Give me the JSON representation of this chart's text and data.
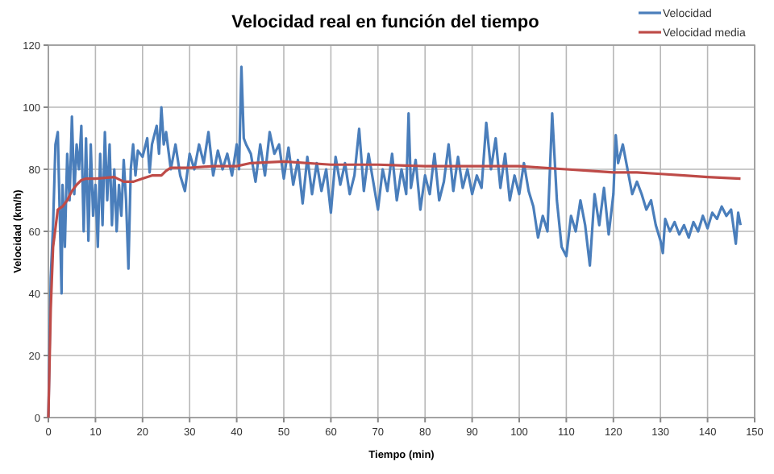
{
  "chart_data": {
    "type": "line",
    "title": "Velocidad real en función del tiempo",
    "xlabel": "Tiempo (min)",
    "ylabel": "Velocidad (km/h)",
    "xlim": [
      0,
      150
    ],
    "xticks": [
      0,
      10,
      20,
      30,
      40,
      50,
      60,
      70,
      80,
      90,
      100,
      110,
      120,
      130,
      140,
      150
    ],
    "ylim": [
      0,
      120
    ],
    "yticks": [
      0,
      20,
      40,
      60,
      80,
      100,
      120
    ],
    "grid": true,
    "legend": "top right",
    "series": [
      {
        "name": "Velocidad",
        "color": "#4a7ebb",
        "x": [
          0,
          0.5,
          1,
          1.5,
          2,
          2.5,
          2.8,
          3,
          3.5,
          4,
          4.5,
          5,
          5.5,
          6,
          6.5,
          7,
          7.5,
          8,
          8.5,
          9,
          9.5,
          10,
          10.5,
          11,
          11.5,
          12,
          12.5,
          13,
          13.5,
          14,
          14.5,
          15,
          15.5,
          16,
          16.5,
          17,
          17.5,
          18,
          18.5,
          19,
          20,
          21,
          21.5,
          22,
          23,
          23.5,
          24,
          24.5,
          25,
          26,
          27,
          28,
          29,
          30,
          31,
          32,
          33,
          34,
          35,
          36,
          37,
          38,
          39,
          40,
          40.5,
          41,
          41.5,
          42,
          43,
          44,
          45,
          46,
          47,
          48,
          49,
          50,
          51,
          52,
          53,
          54,
          55,
          56,
          57,
          58,
          59,
          60,
          61,
          62,
          63,
          64,
          65,
          66,
          67,
          68,
          69,
          70,
          71,
          72,
          73,
          74,
          75,
          76,
          76.5,
          77,
          78,
          79,
          80,
          81,
          82,
          83,
          84,
          85,
          86,
          87,
          88,
          89,
          90,
          91,
          92,
          93,
          94,
          95,
          96,
          97,
          98,
          99,
          100,
          101,
          102,
          103,
          104,
          105,
          106,
          107,
          108,
          109,
          110,
          111,
          112,
          113,
          114,
          115,
          116,
          117,
          118,
          119,
          120,
          120.5,
          121,
          122,
          123,
          124,
          125,
          126,
          127,
          128,
          129,
          130,
          130.5,
          131,
          132,
          133,
          134,
          135,
          136,
          137,
          138,
          139,
          140,
          141,
          142,
          143,
          144,
          145,
          146,
          146.5,
          147
        ],
        "values": [
          0,
          45,
          62,
          88,
          92,
          60,
          40,
          75,
          55,
          85,
          70,
          97,
          72,
          88,
          80,
          94,
          60,
          90,
          57,
          88,
          65,
          75,
          55,
          85,
          62,
          92,
          70,
          88,
          62,
          80,
          60,
          75,
          65,
          83,
          70,
          48,
          80,
          88,
          78,
          86,
          84,
          90,
          79,
          88,
          94,
          85,
          100,
          88,
          92,
          80,
          88,
          78,
          73,
          85,
          80,
          88,
          82,
          92,
          78,
          86,
          80,
          85,
          78,
          88,
          80,
          113,
          90,
          88,
          85,
          76,
          88,
          78,
          92,
          85,
          88,
          77,
          87,
          75,
          83,
          69,
          84,
          72,
          82,
          73,
          80,
          66,
          84,
          75,
          82,
          72,
          78,
          93,
          73,
          85,
          76,
          67,
          80,
          73,
          85,
          70,
          80,
          72,
          98,
          74,
          83,
          67,
          78,
          72,
          85,
          70,
          76,
          88,
          73,
          84,
          74,
          80,
          72,
          78,
          74,
          95,
          80,
          90,
          74,
          85,
          70,
          78,
          72,
          82,
          73,
          68,
          58,
          65,
          60,
          98,
          70,
          55,
          52,
          65,
          60,
          70,
          62,
          49,
          72,
          62,
          74,
          59,
          72,
          91,
          82,
          88,
          80,
          72,
          76,
          72,
          67,
          70,
          62,
          57,
          53,
          64,
          60,
          63,
          59,
          62,
          58,
          63,
          60,
          65,
          61,
          66,
          64,
          68,
          65,
          67,
          56,
          66,
          62
        ]
      },
      {
        "name": "Velocidad media",
        "color": "#be4b48",
        "x": [
          0,
          0.5,
          1,
          2,
          3,
          4,
          5,
          6,
          7,
          8,
          10,
          14,
          16,
          18,
          20,
          22,
          24,
          25,
          26,
          30,
          35,
          40,
          43,
          50,
          60,
          70,
          80,
          90,
          100,
          105,
          110,
          115,
          120,
          125,
          130,
          135,
          140,
          147
        ],
        "values": [
          0,
          35,
          55,
          67,
          68,
          70,
          73,
          75,
          76.5,
          77,
          77,
          77.5,
          76,
          76,
          77,
          78,
          78,
          79.5,
          80.5,
          80.5,
          81,
          81,
          82,
          82.5,
          81.5,
          81.5,
          81,
          81,
          81,
          80.5,
          80,
          79.5,
          79,
          79,
          78.5,
          78,
          77.5,
          77
        ]
      }
    ]
  }
}
